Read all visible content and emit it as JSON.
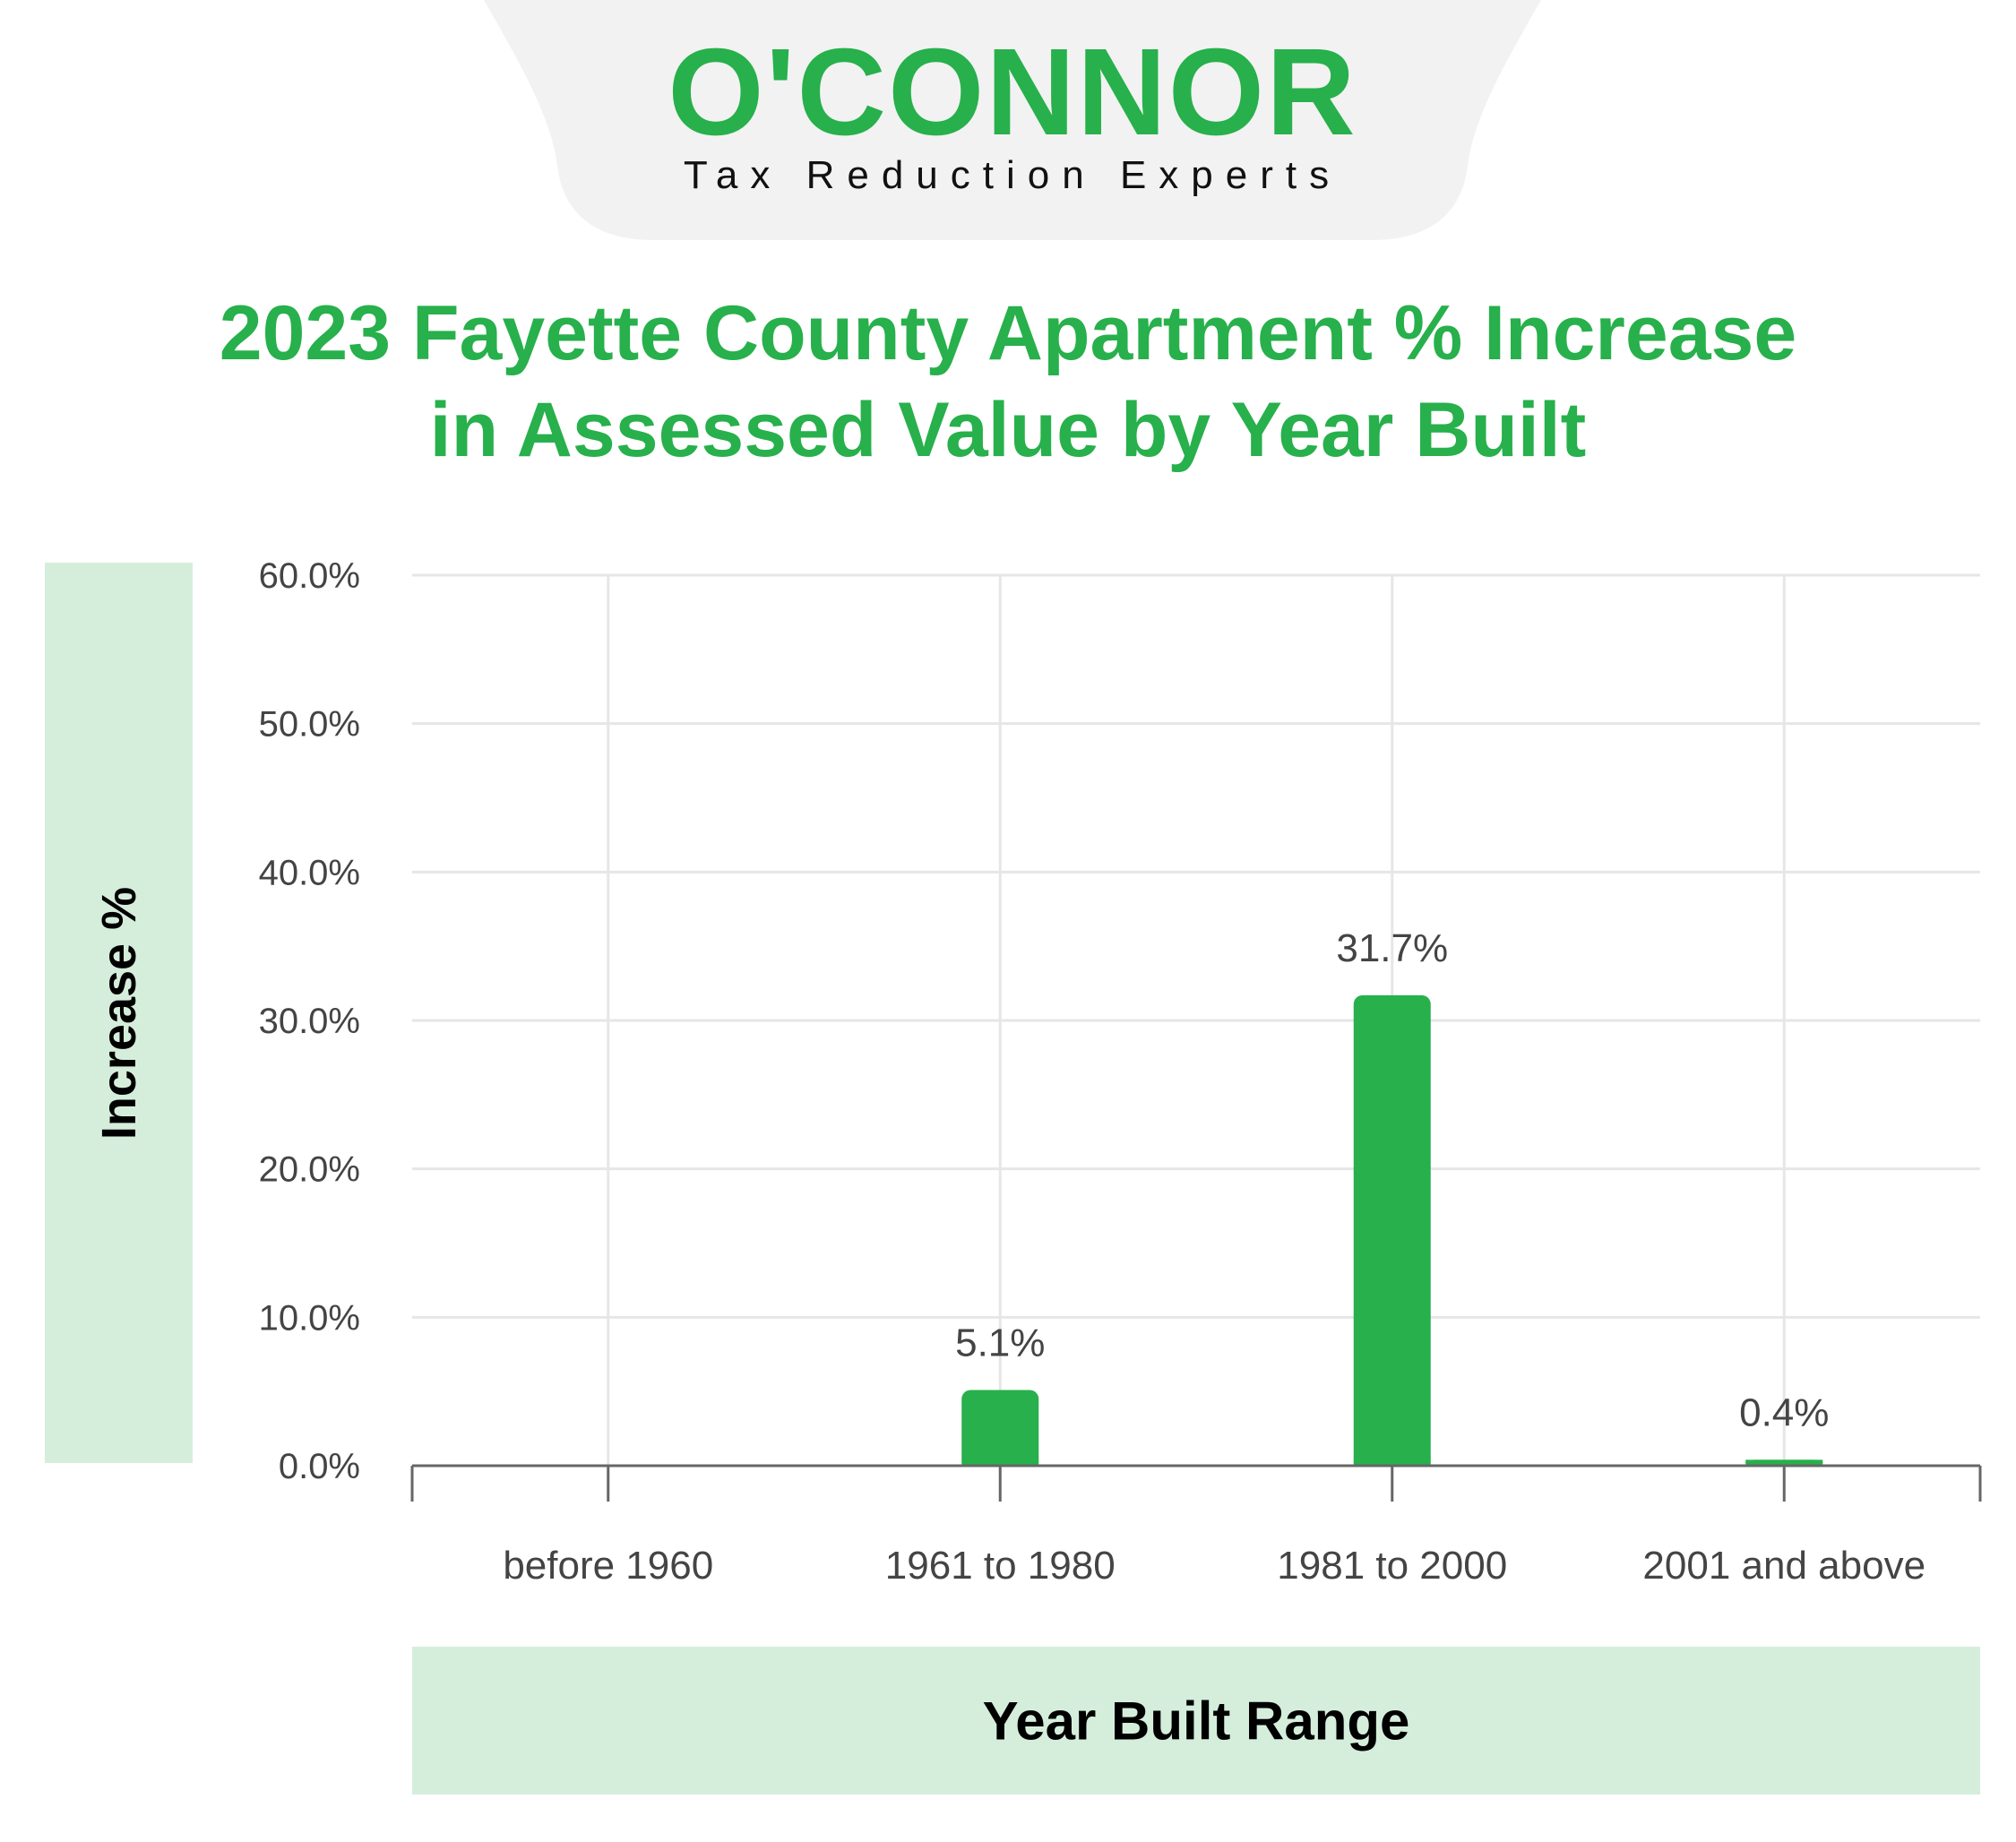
{
  "logo": {
    "word": "O'CONNOR",
    "tagline": "Tax Reduction Experts"
  },
  "colors": {
    "brand_green": "#27b04b",
    "label_box": "#d5eedc",
    "header_tab": "#f2f2f2",
    "grid": "#e6e6e6",
    "axis": "#666666"
  },
  "chart_data": {
    "type": "bar",
    "title_lines": [
      "2023 Fayette County Apartment % Increase",
      "in Assessed Value by Year Built"
    ],
    "categories": [
      "before 1960",
      "1961 to 1980",
      "1981 to 2000",
      "2001 and above"
    ],
    "values": [
      0,
      5.1,
      31.7,
      0.4
    ],
    "data_labels": [
      "",
      "5.1%",
      "31.7%",
      "0.4%"
    ],
    "ylim": [
      0,
      60
    ],
    "yticks": [
      "0.0%",
      "10.0%",
      "20.0%",
      "30.0%",
      "40.0%",
      "50.0%",
      "60.0%"
    ],
    "ylabel": "Increase %",
    "xlabel": "Year Built Range",
    "grid": true,
    "legend": "none"
  }
}
